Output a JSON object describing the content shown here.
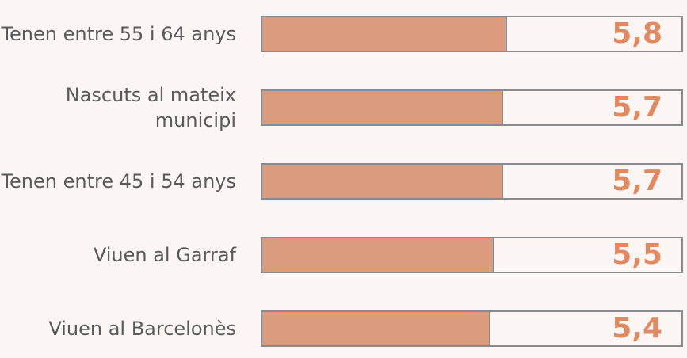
{
  "chart_data": {
    "type": "bar",
    "orientation": "horizontal",
    "categories": [
      "Tenen entre 55 i 64 anys",
      "Nascuts al mateix municipi",
      "Tenen entre 45 i 54 anys",
      "Viuen al Garraf",
      "Viuen al Barcelonès"
    ],
    "values": [
      5.8,
      5.7,
      5.7,
      5.5,
      5.4
    ],
    "value_labels": [
      "5,8",
      "5,7",
      "5,7",
      "5,5",
      "5,4"
    ],
    "color": "#dc9a7f",
    "label_color": "#e08a63",
    "xlim": [
      0,
      10
    ]
  }
}
